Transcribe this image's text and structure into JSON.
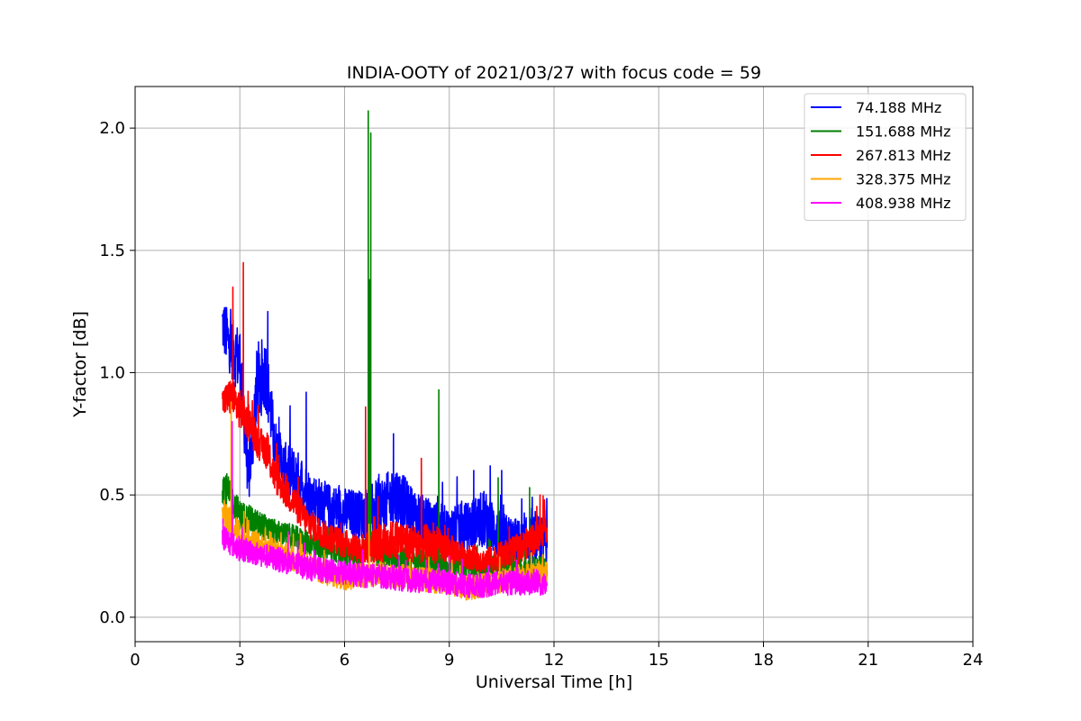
{
  "chart_data": {
    "type": "line",
    "title": "INDIA-OOTY of 2021/03/27 with focus code = 59",
    "xlabel": "Universal Time [h]",
    "ylabel": "Y-factor [dB]",
    "xlim": [
      0,
      24
    ],
    "ylim": [
      -0.1,
      2.17
    ],
    "xticks": [
      0,
      3,
      6,
      9,
      12,
      15,
      18,
      21,
      24
    ],
    "yticks": [
      0.0,
      0.5,
      1.0,
      1.5,
      2.0
    ],
    "xtick_labels": [
      "0",
      "3",
      "6",
      "9",
      "12",
      "15",
      "18",
      "21",
      "24"
    ],
    "ytick_labels": [
      "0.0",
      "0.5",
      "1.0",
      "1.5",
      "2.0"
    ],
    "grid": true,
    "legend_position": "top-right",
    "series": [
      {
        "name": " 74.188 MHz",
        "color": "#0000ff",
        "x": [
          2.5,
          2.75,
          3.0,
          3.25,
          3.5,
          3.75,
          4.0,
          4.25,
          4.5,
          4.75,
          5.0,
          5.5,
          6.0,
          6.5,
          7.0,
          7.5,
          8.0,
          8.5,
          9.0,
          9.5,
          10.0,
          10.5,
          11.0,
          11.5,
          11.8
        ],
        "y": [
          1.2,
          1.1,
          1.05,
          0.55,
          0.95,
          1.0,
          0.7,
          0.62,
          0.58,
          0.55,
          0.5,
          0.45,
          0.43,
          0.42,
          0.45,
          0.5,
          0.42,
          0.38,
          0.35,
          0.37,
          0.4,
          0.33,
          0.3,
          0.32,
          0.3
        ],
        "noise": [
          0.12,
          0.12,
          0.15,
          0.1,
          0.18,
          0.15,
          0.12,
          0.1,
          0.12,
          0.12,
          0.1,
          0.1,
          0.1,
          0.1,
          0.12,
          0.12,
          0.1,
          0.1,
          0.1,
          0.1,
          0.12,
          0.1,
          0.1,
          0.1,
          0.1
        ],
        "spikes": [
          {
            "x": 3.8,
            "y": 1.25
          },
          {
            "x": 4.9,
            "y": 0.92
          },
          {
            "x": 7.4,
            "y": 0.75
          },
          {
            "x": 9.7,
            "y": 0.6
          },
          {
            "x": 10.5,
            "y": 0.6
          }
        ]
      },
      {
        "name": "151.688 MHz",
        "color": "#008000",
        "x": [
          2.5,
          2.75,
          3.0,
          3.5,
          4.0,
          4.5,
          5.0,
          5.5,
          6.0,
          6.5,
          6.7,
          7.0,
          7.5,
          8.0,
          8.5,
          9.0,
          9.5,
          10.0,
          10.5,
          11.0,
          11.5,
          11.8
        ],
        "y": [
          0.55,
          0.48,
          0.42,
          0.38,
          0.35,
          0.33,
          0.3,
          0.28,
          0.26,
          0.25,
          0.3,
          0.25,
          0.24,
          0.23,
          0.22,
          0.22,
          0.21,
          0.2,
          0.22,
          0.2,
          0.2,
          0.2
        ],
        "noise": [
          0.08,
          0.07,
          0.06,
          0.06,
          0.05,
          0.05,
          0.05,
          0.05,
          0.05,
          0.05,
          0.05,
          0.05,
          0.05,
          0.05,
          0.05,
          0.05,
          0.05,
          0.05,
          0.05,
          0.05,
          0.05,
          0.05
        ],
        "spikes": [
          {
            "x": 6.68,
            "y": 2.07
          },
          {
            "x": 6.75,
            "y": 1.98
          },
          {
            "x": 6.72,
            "y": 1.38
          },
          {
            "x": 8.7,
            "y": 0.93
          },
          {
            "x": 10.4,
            "y": 0.57
          },
          {
            "x": 11.3,
            "y": 0.53
          }
        ]
      },
      {
        "name": "267.813 MHz",
        "color": "#ff0000",
        "x": [
          2.5,
          2.75,
          3.0,
          3.25,
          3.5,
          3.75,
          4.0,
          4.5,
          5.0,
          5.5,
          6.0,
          6.5,
          7.0,
          7.5,
          8.0,
          8.5,
          9.0,
          9.5,
          10.0,
          10.5,
          11.0,
          11.5,
          11.8
        ],
        "y": [
          0.88,
          0.9,
          0.85,
          0.8,
          0.72,
          0.68,
          0.58,
          0.48,
          0.38,
          0.33,
          0.3,
          0.28,
          0.3,
          0.32,
          0.3,
          0.3,
          0.28,
          0.25,
          0.23,
          0.25,
          0.28,
          0.33,
          0.38
        ],
        "noise": [
          0.06,
          0.08,
          0.08,
          0.08,
          0.07,
          0.07,
          0.07,
          0.07,
          0.06,
          0.06,
          0.06,
          0.06,
          0.08,
          0.08,
          0.08,
          0.08,
          0.06,
          0.05,
          0.05,
          0.06,
          0.06,
          0.07,
          0.07
        ],
        "spikes": [
          {
            "x": 3.1,
            "y": 1.45
          },
          {
            "x": 2.8,
            "y": 1.35
          },
          {
            "x": 6.6,
            "y": 0.86
          },
          {
            "x": 8.2,
            "y": 0.65
          },
          {
            "x": 11.6,
            "y": 0.5
          }
        ]
      },
      {
        "name": "328.375 MHz",
        "color": "#ffa500",
        "x": [
          2.5,
          2.75,
          3.0,
          3.5,
          4.0,
          4.5,
          5.0,
          5.5,
          6.0,
          6.5,
          7.0,
          7.5,
          8.0,
          8.5,
          9.0,
          9.5,
          10.0,
          10.5,
          11.0,
          11.5,
          11.8
        ],
        "y": [
          0.42,
          0.38,
          0.34,
          0.3,
          0.27,
          0.24,
          0.21,
          0.18,
          0.16,
          0.17,
          0.18,
          0.17,
          0.16,
          0.15,
          0.14,
          0.12,
          0.13,
          0.15,
          0.17,
          0.18,
          0.18
        ],
        "noise": [
          0.07,
          0.06,
          0.06,
          0.05,
          0.05,
          0.05,
          0.05,
          0.05,
          0.05,
          0.05,
          0.05,
          0.05,
          0.05,
          0.05,
          0.05,
          0.05,
          0.05,
          0.05,
          0.05,
          0.05,
          0.05
        ],
        "spikes": [
          {
            "x": 2.75,
            "y": 0.88
          },
          {
            "x": 6.7,
            "y": 0.38
          }
        ]
      },
      {
        "name": "408.938 MHz",
        "color": "#ff00ff",
        "x": [
          2.5,
          2.75,
          3.0,
          3.5,
          4.0,
          4.5,
          5.0,
          5.5,
          6.0,
          6.5,
          7.0,
          7.5,
          8.0,
          8.5,
          9.0,
          9.5,
          10.0,
          10.5,
          11.0,
          11.5,
          11.8
        ],
        "y": [
          0.33,
          0.3,
          0.28,
          0.26,
          0.24,
          0.22,
          0.2,
          0.19,
          0.18,
          0.17,
          0.17,
          0.16,
          0.15,
          0.15,
          0.14,
          0.13,
          0.13,
          0.14,
          0.14,
          0.14,
          0.13
        ],
        "noise": [
          0.06,
          0.05,
          0.05,
          0.05,
          0.05,
          0.05,
          0.05,
          0.05,
          0.05,
          0.05,
          0.05,
          0.05,
          0.05,
          0.05,
          0.05,
          0.05,
          0.05,
          0.05,
          0.05,
          0.05,
          0.05
        ],
        "spikes": [
          {
            "x": 2.78,
            "y": 0.8
          }
        ]
      }
    ]
  }
}
